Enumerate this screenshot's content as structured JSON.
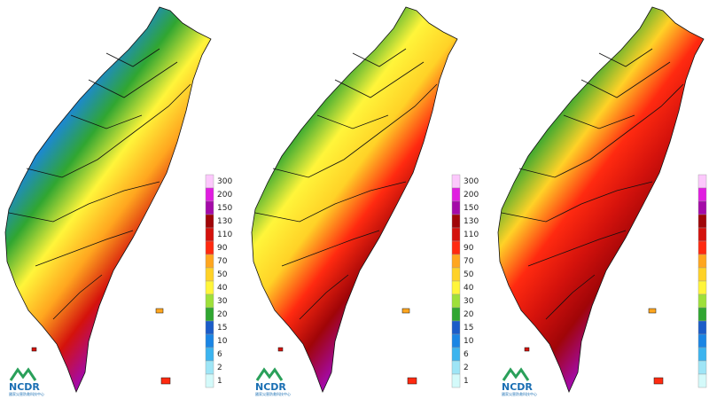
{
  "legend": {
    "levels": [
      {
        "value": 300,
        "color": "#fcc8fc"
      },
      {
        "value": 200,
        "color": "#e01ee0"
      },
      {
        "value": 150,
        "color": "#a40aa8"
      },
      {
        "value": 130,
        "color": "#a00508"
      },
      {
        "value": 110,
        "color": "#d4120c"
      },
      {
        "value": 90,
        "color": "#ff2a10"
      },
      {
        "value": 70,
        "color": "#ffa61f"
      },
      {
        "value": 50,
        "color": "#ffd227"
      },
      {
        "value": 40,
        "color": "#fff53a"
      },
      {
        "value": 30,
        "color": "#9ee03a"
      },
      {
        "value": 20,
        "color": "#30a631"
      },
      {
        "value": 15,
        "color": "#1b5cc8"
      },
      {
        "value": 10,
        "color": "#1a85e4"
      },
      {
        "value": 6,
        "color": "#3cb4ef"
      },
      {
        "value": 2,
        "color": "#9ee5f6"
      },
      {
        "value": 1,
        "color": "#d4fafa"
      }
    ]
  },
  "logo": {
    "name": "NCDR",
    "subtitle": "國家災害防救科技中心"
  }
}
